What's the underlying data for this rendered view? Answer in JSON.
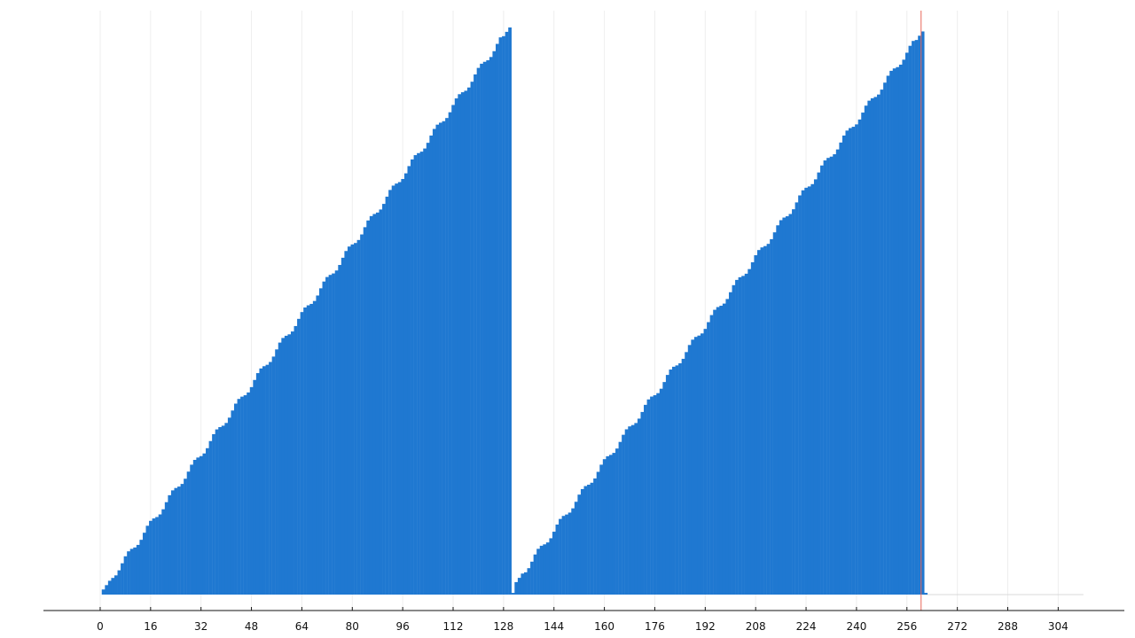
{
  "chart_data": {
    "type": "bar",
    "title": "",
    "xlabel": "",
    "ylabel": "",
    "xlim": [
      -18,
      325
    ],
    "ylim": [
      0,
      1
    ],
    "x_ticks": [
      0,
      16,
      32,
      48,
      64,
      80,
      96,
      112,
      128,
      144,
      160,
      176,
      192,
      208,
      224,
      240,
      256,
      272,
      288,
      304
    ],
    "grid": "vertical",
    "bar_color": "#1f78d1",
    "marker_color": "#e8685a",
    "marker_x": 261,
    "segments": [
      {
        "x_start": 1,
        "x_end": 130,
        "y_start": 0.009,
        "y_end": 1.0
      },
      {
        "x_start": 132,
        "x_end": 261,
        "y_start": 0.022,
        "y_end": 0.993
      }
    ],
    "tail": [
      {
        "x": 131,
        "y": 0.003
      },
      {
        "x": 262,
        "y": 0.003
      }
    ]
  }
}
